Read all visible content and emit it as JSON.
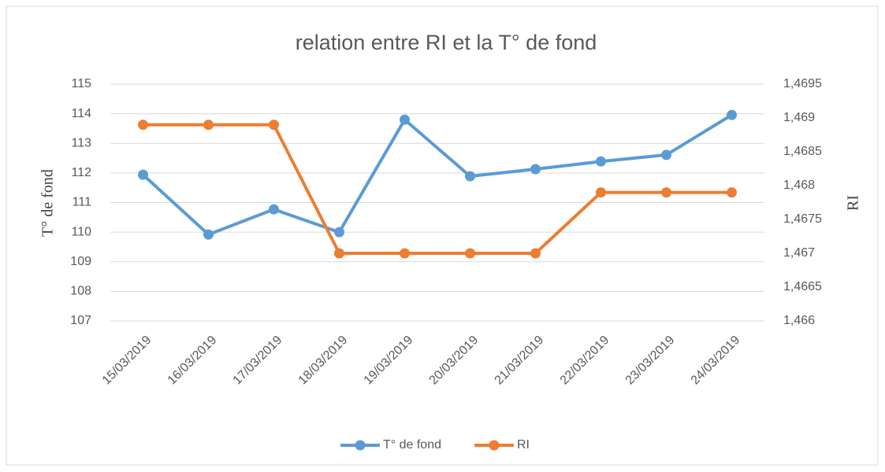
{
  "chart_data": {
    "type": "line",
    "title": "relation entre RI et la T° de fond",
    "y_label": "T° de fond",
    "y2_label": "RI",
    "categories": [
      "15/03/2019",
      "16/03/2019",
      "17/03/2019",
      "18/03/2019",
      "19/03/2019",
      "20/03/2019",
      "21/03/2019",
      "22/03/2019",
      "23/03/2019",
      "24/03/2019"
    ],
    "series": [
      {
        "name": "T° de fond",
        "color": "#5b9bd5",
        "values": [
          111.94,
          109.92,
          110.77,
          110.0,
          113.8,
          111.89,
          112.13,
          112.39,
          112.61,
          113.96
        ]
      },
      {
        "name": "RI",
        "color": "#ed7d31",
        "axis": "y2",
        "values": [
          1.4689,
          1.4689,
          1.4689,
          1.467,
          1.467,
          1.467,
          1.467,
          1.4679,
          1.4679,
          1.4679
        ]
      }
    ],
    "ylim": [
      107,
      115
    ],
    "yticks": [
      107,
      108,
      109,
      110,
      111,
      112,
      113,
      114,
      115
    ],
    "y2lim": [
      1.466,
      1.4695
    ],
    "y2ticks": [
      {
        "value": 1.466,
        "label": "1,466"
      },
      {
        "value": 1.4665,
        "label": "1,4665"
      },
      {
        "value": 1.467,
        "label": "1,467"
      },
      {
        "value": 1.4675,
        "label": "1,4675"
      },
      {
        "value": 1.468,
        "label": "1,468"
      },
      {
        "value": 1.4685,
        "label": "1,4685"
      },
      {
        "value": 1.469,
        "label": "1,469"
      },
      {
        "value": 1.4695,
        "label": "1,4695"
      }
    ],
    "grid": true,
    "legend": "bottom"
  }
}
